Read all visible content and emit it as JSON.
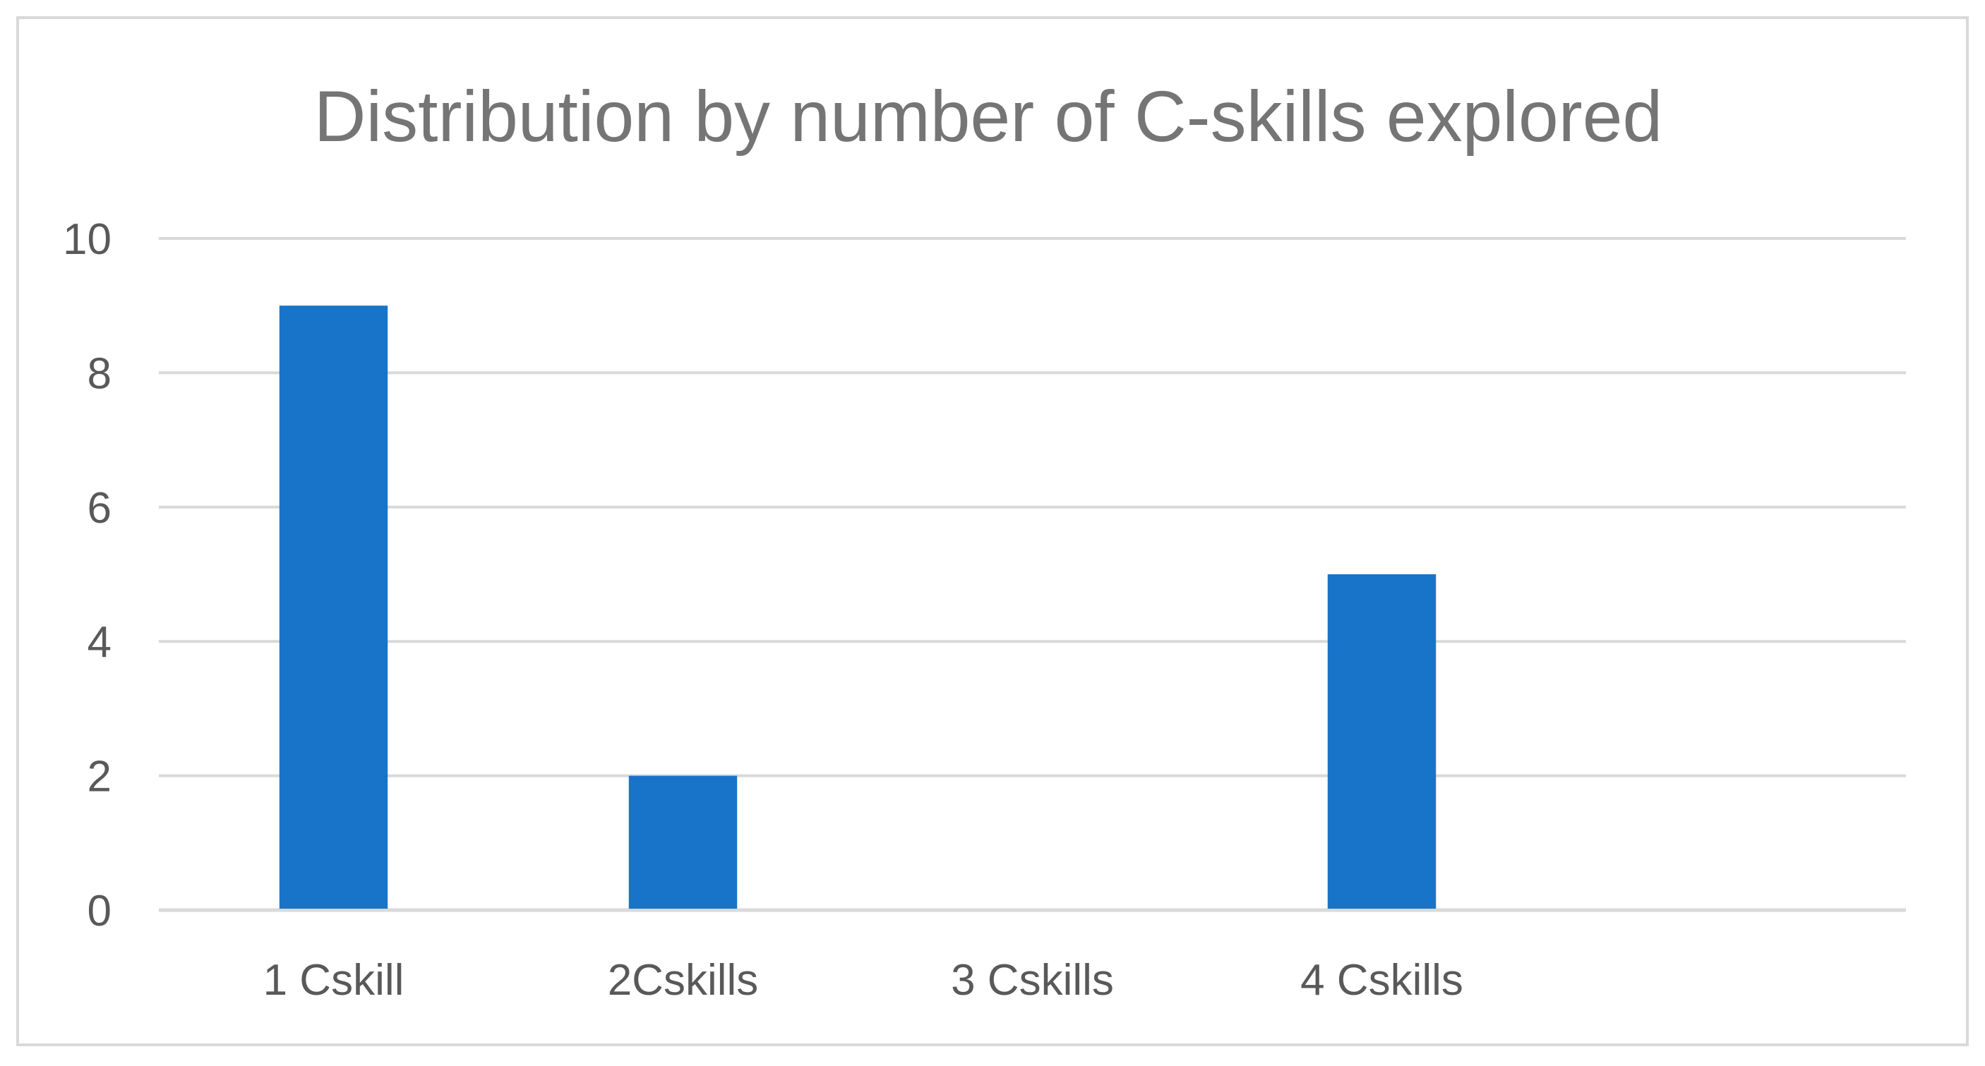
{
  "chart_data": {
    "type": "bar",
    "title": "Distribution by number of C-skills explored",
    "xlabel": "",
    "ylabel": "",
    "categories": [
      "1 Cskill",
      "2Cskills",
      "3 Cskills",
      "4 Cskills",
      ""
    ],
    "values": [
      9,
      2,
      0,
      5,
      0
    ],
    "ylim": [
      0,
      10
    ],
    "yticks": [
      "0",
      "2",
      "4",
      "6",
      "8",
      "10"
    ],
    "grid": true,
    "legend": "none",
    "colors": {
      "bar": "#1874c9",
      "grid": "#d9d9d9",
      "text": "#595959",
      "title": "#757575",
      "border": "#d9d9d9",
      "background": "#ffffff"
    }
  }
}
